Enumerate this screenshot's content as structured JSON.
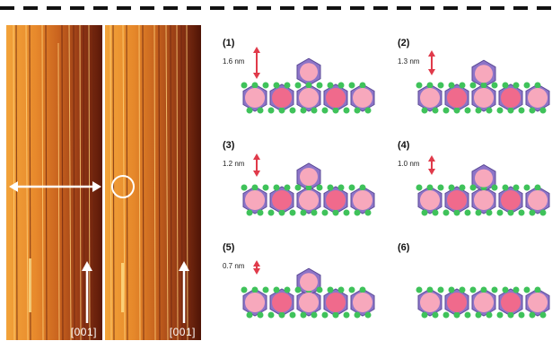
{
  "stm_images": [
    {
      "axis_label": "[001]"
    },
    {
      "axis_label": "[001]"
    }
  ],
  "panels": [
    {
      "number": "(1)",
      "size": "1.6 nm",
      "size_shown": true
    },
    {
      "number": "(2)",
      "size": "1.3 nm",
      "size_shown": true
    },
    {
      "number": "(3)",
      "size": "1.2 nm",
      "size_shown": true
    },
    {
      "number": "(4)",
      "size": "1.0 nm",
      "size_shown": true
    },
    {
      "number": "(5)",
      "size": "0.7 nm",
      "size_shown": true
    },
    {
      "number": "(6)",
      "size": "",
      "size_shown": false
    }
  ],
  "colors": {
    "stm_bright": "#f0a33a",
    "stm_dark": "#7a2a12",
    "arrow": "#ffffff",
    "scale_arrow": "#e03a4a",
    "hexagon": "#8d74c8",
    "node": "#3fc25a",
    "circle": "#f06a8c",
    "circle_light": "#f7a8bc"
  }
}
